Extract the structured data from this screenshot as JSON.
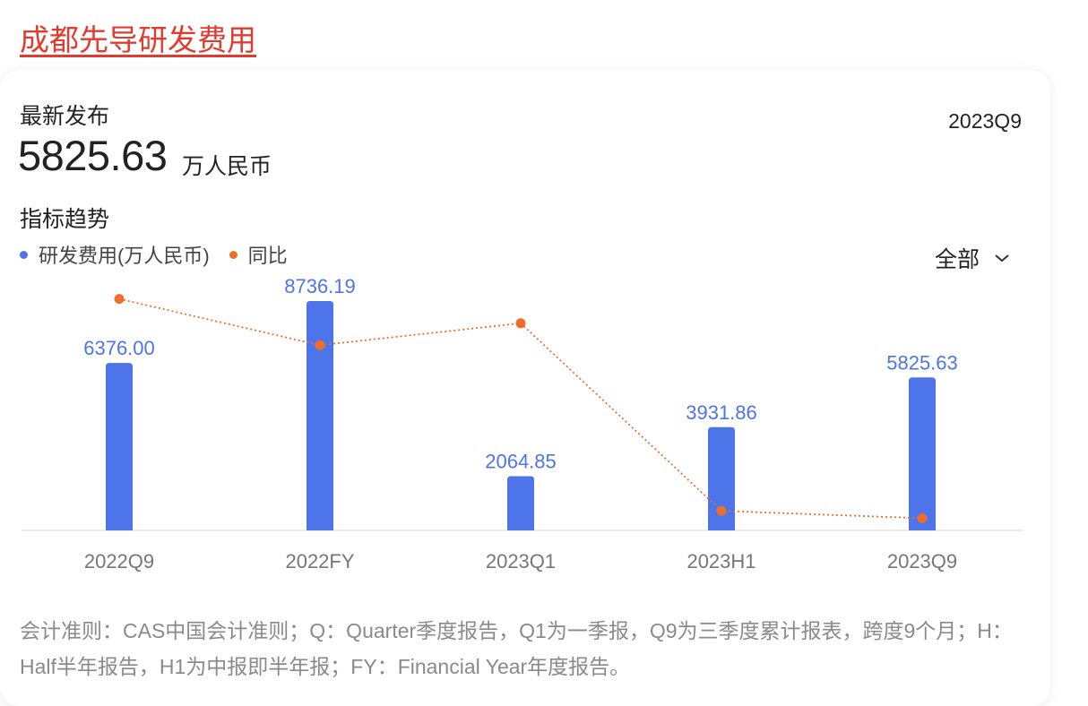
{
  "page_title": "成都先导研发费用",
  "summary": {
    "latest_label": "最新发布",
    "value": "5825.63",
    "unit": "万人民币",
    "period": "2023Q9"
  },
  "trend_label": "指标趋势",
  "range_select": {
    "label": "全部",
    "icon": "chevron-down-icon"
  },
  "colors": {
    "bar": "#4d74e8",
    "line": "#ec6e2c",
    "title": "#e03b2f"
  },
  "chart_data": {
    "type": "bar",
    "categories": [
      "2022Q9",
      "2022FY",
      "2023Q1",
      "2023H1",
      "2023Q9"
    ],
    "series": [
      {
        "name": "研发费用(万人民币)",
        "type": "bar",
        "values": [
          6376.0,
          8736.19,
          2064.85,
          3931.86,
          5825.63
        ],
        "labels": [
          "6376.00",
          "8736.19",
          "2064.85",
          "3931.86",
          "5825.63"
        ]
      },
      {
        "name": "同比",
        "type": "line",
        "style": "dotted",
        "values": [
          0.95,
          0.76,
          0.85,
          0.08,
          0.05
        ]
      }
    ],
    "ylim": [
      0,
      9000
    ],
    "grid": false,
    "legend": "top-left"
  },
  "footnote": "会计准则：CAS中国会计准则；Q：Quarter季度报告，Q1为一季报，Q9为三季度累计报表，跨度9个月；H：Half半年报告，H1为中报即半年报；FY：Financial Year年度报告。"
}
